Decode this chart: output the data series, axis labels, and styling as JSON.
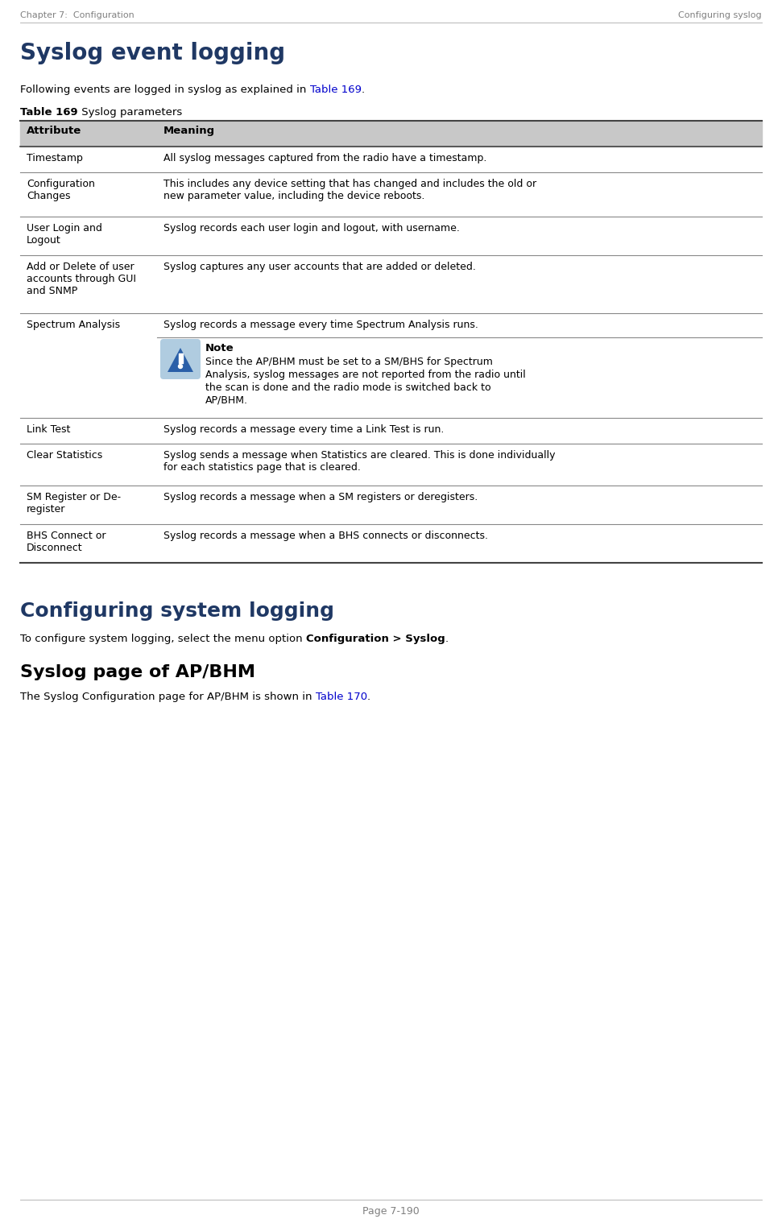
{
  "page_header_left": "Chapter 7:  Configuration",
  "page_header_right": "Configuring syslog",
  "page_footer": "Page 7-190",
  "main_title": "Syslog event logging",
  "intro_text_normal": "Following events are logged in syslog as explained in ",
  "intro_text_link": "Table 169",
  "intro_text_end": ".",
  "table_label_bold": "Table 169",
  "table_label_normal": " Syslog parameters",
  "header_col1": "Attribute",
  "header_col2": "Meaning",
  "header_bg": "#c8c8c8",
  "separator_color": "#555555",
  "table_rows": [
    {
      "attr": "Timestamp",
      "meaning": "All syslog messages captured from the radio have a timestamp.",
      "has_note": false
    },
    {
      "attr": "Configuration\nChanges",
      "meaning": "This includes any device setting that has changed and includes the old or\nnew parameter value, including the device reboots.",
      "has_note": false
    },
    {
      "attr": "User Login and\nLogout",
      "meaning": "Syslog records each user login and logout, with username.",
      "has_note": false
    },
    {
      "attr": "Add or Delete of user\naccounts through GUI\nand SNMP",
      "meaning": "Syslog captures any user accounts that are added or deleted.",
      "has_note": false
    },
    {
      "attr": "Spectrum Analysis",
      "meaning": "Syslog records a message every time Spectrum Analysis runs.",
      "has_note": true,
      "note_title": "Note",
      "note_body": "Since the AP/BHM must be set to a SM/BHS for Spectrum\nAnalysis, syslog messages are not reported from the radio until\nthe scan is done and the radio mode is switched back to\nAP/BHM."
    },
    {
      "attr": "Link Test",
      "meaning": "Syslog records a message every time a Link Test is run.",
      "has_note": false
    },
    {
      "attr": "Clear Statistics",
      "meaning": "Syslog sends a message when Statistics are cleared. This is done individually\nfor each statistics page that is cleared.",
      "has_note": false
    },
    {
      "attr": "SM Register or De-\nregister",
      "meaning": "Syslog records a message when a SM registers or deregisters.",
      "has_note": false
    },
    {
      "attr": "BHS Connect or\nDisconnect",
      "meaning": "Syslog records a message when a BHS connects or disconnects.",
      "has_note": false
    }
  ],
  "section2_title": "Configuring system logging",
  "section2_body_normal": "To configure system logging, select the menu option ",
  "section2_body_bold": "Configuration > Syslog",
  "section2_body_end": ".",
  "section3_title": "Syslog page of AP/BHM",
  "section3_body_normal": "The Syslog Configuration page for AP/BHM is shown in ",
  "section3_body_link": "Table 170",
  "section3_body_end": ".",
  "title_color": "#1F3864",
  "link_color": "#0000cc",
  "text_color": "#000000",
  "header_color": "#808080",
  "note_icon_bg": "#b0cce0",
  "note_icon_color": "#2060a0",
  "fig_width": 9.71,
  "fig_height": 15.14,
  "dpi": 100
}
